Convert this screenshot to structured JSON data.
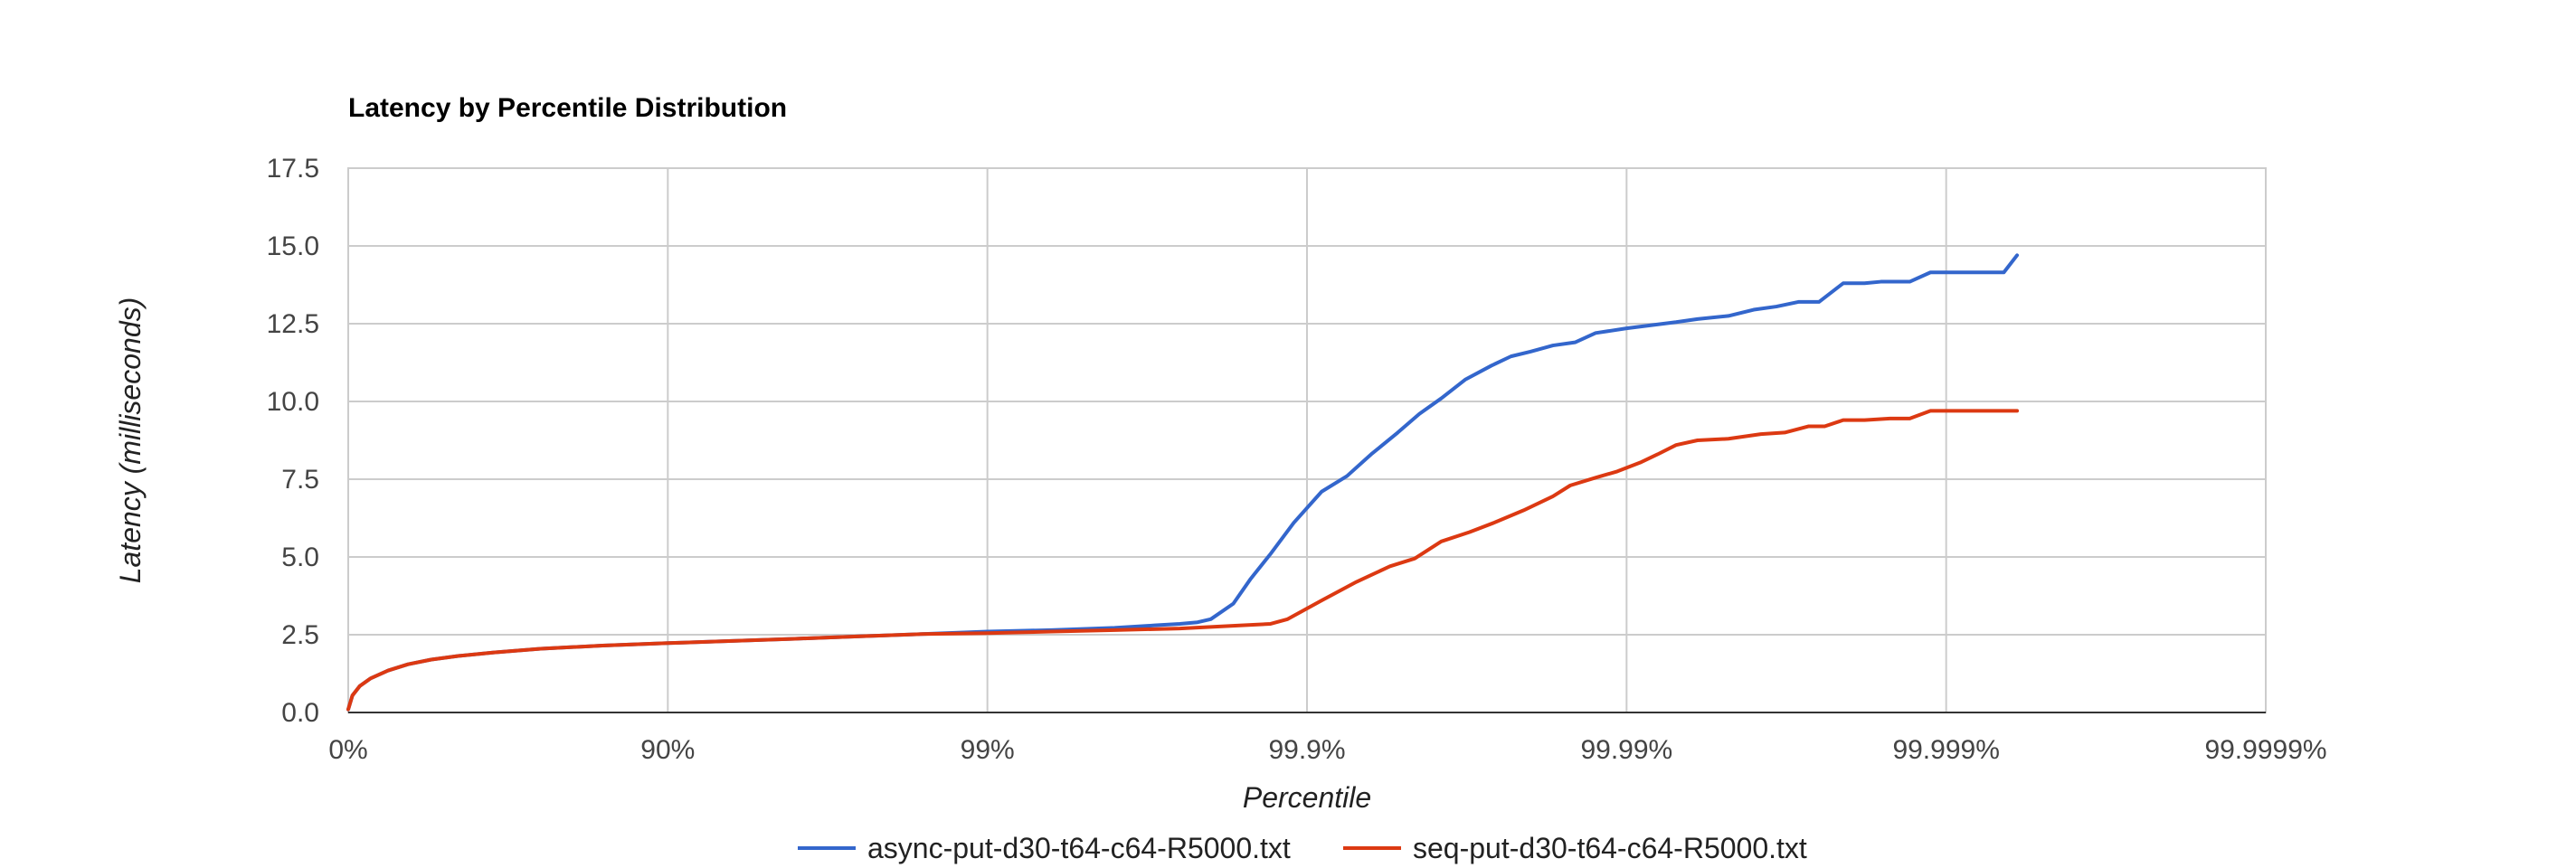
{
  "chart_data": {
    "type": "line",
    "title": "Latency by Percentile Distribution",
    "xlabel": "Percentile",
    "ylabel": "Latency (milliseconds)",
    "x_scale": "log10(1/(1-percentile))",
    "x_ticks": [
      "0%",
      "90%",
      "99%",
      "99.9%",
      "99.99%",
      "99.999%",
      "99.9999%"
    ],
    "y_ticks": [
      "0.0",
      "2.5",
      "5.0",
      "7.5",
      "10.0",
      "12.5",
      "15.0",
      "17.5"
    ],
    "ylim": [
      0,
      17.5
    ],
    "grid": true,
    "legend_position": "bottom",
    "series": [
      {
        "name": "async-put-d30-t64-c64-R5000.txt",
        "color": "#3366cc",
        "points": [
          [
            "0%",
            0.1
          ],
          [
            "3%",
            0.55
          ],
          [
            "8%",
            0.85
          ],
          [
            "15%",
            1.1
          ],
          [
            "25%",
            1.35
          ],
          [
            "35%",
            1.55
          ],
          [
            "45%",
            1.7
          ],
          [
            "55%",
            1.82
          ],
          [
            "65%",
            1.93
          ],
          [
            "75%",
            2.05
          ],
          [
            "84%",
            2.15
          ],
          [
            "90%",
            2.23
          ],
          [
            "93.7%",
            2.3
          ],
          [
            "96%",
            2.37
          ],
          [
            "97.5%",
            2.45
          ],
          [
            "98.4%",
            2.52
          ],
          [
            "99%",
            2.6
          ],
          [
            "99.37%",
            2.65
          ],
          [
            "99.6%",
            2.72
          ],
          [
            "99.7%",
            2.8
          ],
          [
            "99.75%",
            2.85
          ],
          [
            "99.78%",
            2.9
          ],
          [
            "99.8%",
            3.0
          ],
          [
            "99.83%",
            3.5
          ],
          [
            "99.85%",
            4.3
          ],
          [
            "99.87%",
            5.1
          ],
          [
            "99.89%",
            6.1
          ],
          [
            "99.91%",
            7.1
          ],
          [
            "99.925%",
            7.6
          ],
          [
            "99.937%",
            8.3
          ],
          [
            "99.948%",
            9.0
          ],
          [
            "99.9555%",
            9.6
          ],
          [
            "99.962%",
            10.1
          ],
          [
            "99.968%",
            10.7
          ],
          [
            "99.9735%",
            11.15
          ],
          [
            "99.977%",
            11.45
          ],
          [
            "99.98%",
            11.6
          ],
          [
            "99.983%",
            11.8
          ],
          [
            "99.9855%",
            11.9
          ],
          [
            "99.9875%",
            12.2
          ],
          [
            "99.99%",
            12.35
          ],
          [
            "99.9916%",
            12.45
          ],
          [
            "99.993%",
            12.55
          ],
          [
            "99.994%",
            12.65
          ],
          [
            "99.9952%",
            12.75
          ],
          [
            "99.996%",
            12.95
          ],
          [
            "99.9966%",
            13.05
          ],
          [
            "99.9971%",
            13.2
          ],
          [
            "99.9975%",
            13.2
          ],
          [
            "99.9979%",
            13.8
          ],
          [
            "99.9982%",
            13.8
          ],
          [
            "99.9984%",
            13.85
          ],
          [
            "99.9987%",
            13.85
          ],
          [
            "99.99888%",
            14.15
          ],
          [
            "99.99905%",
            14.15
          ],
          [
            "99.9992%",
            14.15
          ],
          [
            "99.99934%",
            14.15
          ],
          [
            "99.9994%",
            14.7
          ]
        ]
      },
      {
        "name": "seq-put-d30-t64-c64-R5000.txt",
        "color": "#dc3912",
        "points": [
          [
            "0%",
            0.1
          ],
          [
            "3%",
            0.55
          ],
          [
            "8%",
            0.85
          ],
          [
            "15%",
            1.1
          ],
          [
            "25%",
            1.35
          ],
          [
            "35%",
            1.55
          ],
          [
            "45%",
            1.7
          ],
          [
            "55%",
            1.82
          ],
          [
            "65%",
            1.93
          ],
          [
            "75%",
            2.05
          ],
          [
            "84%",
            2.15
          ],
          [
            "90%",
            2.23
          ],
          [
            "93.7%",
            2.3
          ],
          [
            "96%",
            2.37
          ],
          [
            "97.5%",
            2.45
          ],
          [
            "98.4%",
            2.52
          ],
          [
            "99%",
            2.55
          ],
          [
            "99.37%",
            2.6
          ],
          [
            "99.6%",
            2.65
          ],
          [
            "99.75%",
            2.7
          ],
          [
            "99.84%",
            2.8
          ],
          [
            "99.87%",
            2.85
          ],
          [
            "99.885%",
            3.0
          ],
          [
            "99.91%",
            3.6
          ],
          [
            "99.93%",
            4.2
          ],
          [
            "99.945%",
            4.7
          ],
          [
            "99.954%",
            4.95
          ],
          [
            "99.962%",
            5.5
          ],
          [
            "99.969%",
            5.8
          ],
          [
            "99.974%",
            6.1
          ],
          [
            "99.979%",
            6.5
          ],
          [
            "99.983%",
            6.95
          ],
          [
            "99.985%",
            7.3
          ],
          [
            "99.9875%",
            7.55
          ],
          [
            "99.9893%",
            7.75
          ],
          [
            "99.991%",
            8.05
          ],
          [
            "99.992%",
            8.3
          ],
          [
            "99.993%",
            8.6
          ],
          [
            "99.994%",
            8.75
          ],
          [
            "99.9952%",
            8.8
          ],
          [
            "99.9962%",
            8.95
          ],
          [
            "99.9968%",
            9.0
          ],
          [
            "99.9973%",
            9.2
          ],
          [
            "99.9976%",
            9.2
          ],
          [
            "99.9979%",
            9.4
          ],
          [
            "99.9982%",
            9.4
          ],
          [
            "99.9985%",
            9.45
          ],
          [
            "99.9987%",
            9.45
          ],
          [
            "99.99888%",
            9.7
          ],
          [
            "99.99915%",
            9.7
          ],
          [
            "99.9994%",
            9.7
          ]
        ]
      }
    ]
  }
}
